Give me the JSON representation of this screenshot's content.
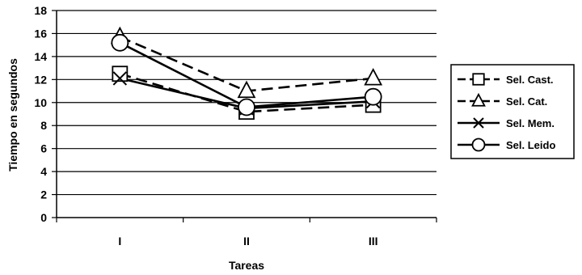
{
  "chart_data": {
    "type": "line",
    "categories": [
      "I",
      "II",
      "III"
    ],
    "xlabel": "Tareas",
    "ylabel": "Tiempo en segundos",
    "ylim": [
      0,
      18
    ],
    "yticks": [
      0,
      2,
      4,
      6,
      8,
      10,
      12,
      14,
      16,
      18
    ],
    "grid": true,
    "legend_position": "right",
    "series": [
      {
        "name": "Sel. Cast.",
        "values": [
          12.5,
          9.2,
          9.8
        ],
        "marker": "square",
        "dash": "long-dash",
        "color": "#000000"
      },
      {
        "name": "Sel. Cat.",
        "values": [
          15.7,
          11.0,
          12.1
        ],
        "marker": "triangle",
        "dash": "long-dash",
        "color": "#000000"
      },
      {
        "name": "Sel. Mem.",
        "values": [
          12.1,
          9.5,
          10.1
        ],
        "marker": "x",
        "dash": "solid",
        "color": "#000000"
      },
      {
        "name": "Sel. Leido",
        "values": [
          15.2,
          9.6,
          10.5
        ],
        "marker": "circle",
        "dash": "solid",
        "color": "#000000"
      }
    ]
  }
}
